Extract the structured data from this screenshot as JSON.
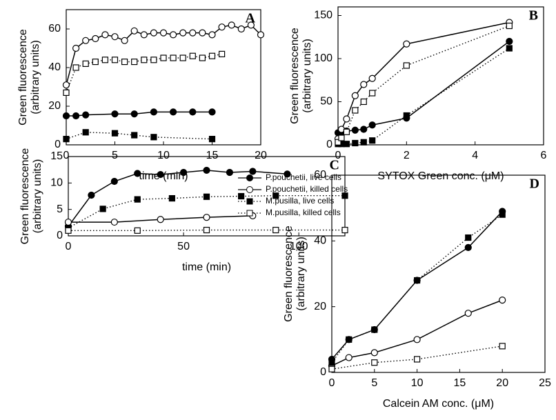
{
  "chart_data": [
    {
      "type": "line",
      "label": "A",
      "xlabel": "time (min)",
      "ylabel": [
        "Green fluorescence",
        "(arbitrary units)"
      ],
      "xlim": [
        0,
        20
      ],
      "xticks": [
        0,
        5,
        10,
        15,
        20
      ],
      "ylim": [
        0,
        70
      ],
      "yticks": [
        0,
        20,
        40,
        60
      ],
      "series": [
        {
          "name": "P.pouchetii, live cells",
          "color": "#000000",
          "marker": "circle",
          "filled": true,
          "dotted": false,
          "x": [
            0,
            1,
            2,
            5,
            7,
            9,
            11,
            13,
            15
          ],
          "values": [
            15,
            15,
            15.5,
            16,
            16,
            17,
            17,
            17,
            17
          ]
        },
        {
          "name": "P.pouchetii, killed cells",
          "color": "#000000",
          "marker": "circle",
          "filled": false,
          "dotted": false,
          "x": [
            0,
            1,
            2,
            3,
            4,
            5,
            6,
            7,
            8,
            9,
            10,
            11,
            12,
            13,
            14,
            15,
            16,
            17,
            18,
            19,
            20
          ],
          "values": [
            31,
            50,
            54,
            55,
            57,
            56,
            54,
            59,
            57,
            58,
            58,
            57,
            58,
            58,
            58,
            57,
            61,
            62,
            60,
            62,
            57
          ]
        },
        {
          "name": "M.pusilla, live cells",
          "color": "#000000",
          "marker": "square",
          "filled": true,
          "dotted": true,
          "x": [
            0,
            2,
            5,
            7,
            9,
            15
          ],
          "values": [
            3,
            6.5,
            6,
            5,
            4,
            3
          ]
        },
        {
          "name": "M.pusilla, killed cells",
          "color": "#000000",
          "marker": "square",
          "filled": false,
          "dotted": true,
          "x": [
            0,
            1,
            2,
            3,
            4,
            5,
            6,
            7,
            8,
            9,
            10,
            11,
            12,
            13,
            14,
            15,
            16
          ],
          "values": [
            27,
            40,
            42,
            43,
            44,
            44,
            43,
            43,
            44,
            44,
            45,
            45,
            45,
            46,
            45,
            46,
            47
          ]
        }
      ]
    },
    {
      "type": "line",
      "label": "B",
      "xlabel": "SYTOX Green conc. (μM)",
      "ylabel": [
        "Green fluorescence",
        "(arbitrary units)"
      ],
      "xlim": [
        0,
        6
      ],
      "xticks": [
        0,
        2,
        4,
        6
      ],
      "ylim": [
        0,
        160
      ],
      "yticks": [
        0,
        50,
        100,
        150
      ],
      "series": [
        {
          "color": "#000000",
          "marker": "circle",
          "filled": true,
          "dotted": false,
          "x": [
            0,
            0.1,
            0.25,
            0.5,
            0.75,
            1,
            2,
            5
          ],
          "values": [
            14,
            15,
            16,
            17,
            18,
            23,
            31,
            120
          ]
        },
        {
          "color": "#000000",
          "marker": "circle",
          "filled": false,
          "dotted": false,
          "x": [
            0,
            0.1,
            0.25,
            0.5,
            0.75,
            1,
            2,
            5
          ],
          "values": [
            7,
            18,
            30,
            57,
            70,
            77,
            117,
            142
          ]
        },
        {
          "color": "#000000",
          "marker": "square",
          "filled": true,
          "dotted": true,
          "x": [
            0,
            0.1,
            0.25,
            0.5,
            0.75,
            1,
            2,
            5
          ],
          "values": [
            1,
            1,
            1,
            2,
            3,
            5,
            34,
            112
          ]
        },
        {
          "color": "#000000",
          "marker": "square",
          "filled": false,
          "dotted": true,
          "x": [
            0,
            0.1,
            0.25,
            0.5,
            0.75,
            1,
            2,
            5
          ],
          "values": [
            3,
            8,
            15,
            40,
            50,
            60,
            92,
            138
          ]
        }
      ]
    },
    {
      "type": "line",
      "label": "C",
      "xlabel": "time (min)",
      "ylabel": [
        "Green fluorescence",
        "(arbitrary units)"
      ],
      "xlim": [
        0,
        120
      ],
      "xticks": [
        0,
        50,
        100
      ],
      "ylim": [
        0,
        15
      ],
      "yticks": [
        0,
        5,
        10,
        15
      ],
      "series": [
        {
          "color": "#000000",
          "marker": "circle",
          "filled": true,
          "dotted": false,
          "x": [
            0,
            10,
            20,
            30,
            40,
            50,
            60,
            70,
            80,
            95
          ],
          "values": [
            1.8,
            7.7,
            10.3,
            11.8,
            11.6,
            12.0,
            12.4,
            12.0,
            12.2,
            11.7
          ]
        },
        {
          "color": "#000000",
          "marker": "circle",
          "filled": false,
          "dotted": false,
          "x": [
            0,
            20,
            40,
            60,
            80
          ],
          "values": [
            2.6,
            2.6,
            3.1,
            3.5,
            3.8
          ]
        },
        {
          "color": "#000000",
          "marker": "square",
          "filled": true,
          "dotted": true,
          "x": [
            0,
            15,
            30,
            45,
            60,
            75,
            90,
            120
          ],
          "values": [
            1.5,
            5.1,
            6.9,
            7.1,
            7.4,
            7.5,
            7.6,
            7.6
          ]
        },
        {
          "color": "#000000",
          "marker": "square",
          "filled": false,
          "dotted": true,
          "x": [
            0,
            30,
            60,
            90,
            120
          ],
          "values": [
            1.0,
            1.0,
            1.1,
            1.1,
            1.1
          ]
        }
      ]
    },
    {
      "type": "line",
      "label": "D",
      "xlabel": "Calcein AM conc. (μM)",
      "ylabel": [
        "Green fluorescence",
        "(arbitrary units)"
      ],
      "xlim": [
        0,
        25
      ],
      "xticks": [
        0,
        5,
        10,
        15,
        20,
        25
      ],
      "ylim": [
        0,
        60
      ],
      "yticks": [
        0,
        20,
        40,
        60
      ],
      "series": [
        {
          "color": "#000000",
          "marker": "circle",
          "filled": true,
          "dotted": false,
          "x": [
            0,
            2,
            5,
            10,
            16,
            20
          ],
          "values": [
            4,
            10,
            13,
            28,
            38,
            49
          ]
        },
        {
          "color": "#000000",
          "marker": "circle",
          "filled": false,
          "dotted": false,
          "x": [
            0,
            2,
            5,
            10,
            16,
            20
          ],
          "values": [
            2,
            4.5,
            6,
            10,
            18,
            22
          ]
        },
        {
          "color": "#000000",
          "marker": "square",
          "filled": true,
          "dotted": true,
          "x": [
            0,
            2,
            5,
            10,
            16,
            20
          ],
          "values": [
            3,
            10,
            13,
            28,
            41,
            48
          ]
        },
        {
          "color": "#000000",
          "marker": "square",
          "filled": false,
          "dotted": true,
          "x": [
            0,
            5,
            10,
            20
          ],
          "values": [
            1,
            3,
            4,
            8
          ]
        }
      ]
    }
  ]
}
